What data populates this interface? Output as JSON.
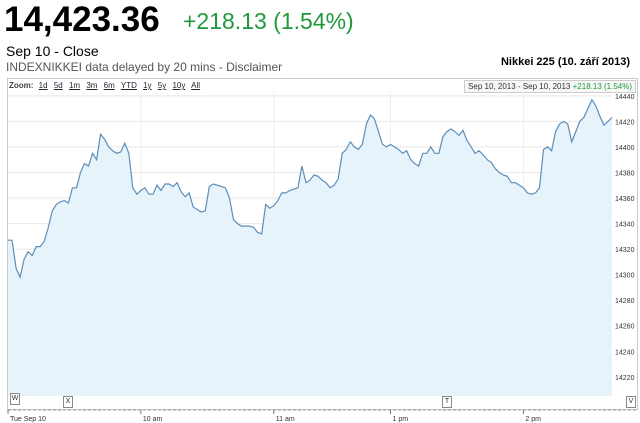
{
  "quote": {
    "price": "14,423.36",
    "change": "+218.13 (1.54%)",
    "close_label": "Sep 10 - Close",
    "source": "INDEXNIKKEI data delayed by 20 mins",
    "separator": " - ",
    "disclaimer": "Disclaimer"
  },
  "zoom": {
    "label": "Zoom:",
    "options": [
      "1d",
      "5d",
      "1m",
      "3m",
      "6m",
      "YTD",
      "1y",
      "5y",
      "10y",
      "All"
    ]
  },
  "range": {
    "text": "Sep 10, 2013 - Sep 10, 2013",
    "change": "+218.13 (1.54%)"
  },
  "colors": {
    "line": "#5e8db8",
    "fill": "#e6f3fb",
    "positive": "#1f9a3b"
  },
  "chart_data": {
    "type": "area",
    "title": "Nikkei 225 (10. září 2013)",
    "ylim": [
      14205,
      14443
    ],
    "yticks": [
      14220,
      14240,
      14260,
      14280,
      14300,
      14320,
      14340,
      14360,
      14380,
      14400,
      14420,
      14440
    ],
    "x_tick_labels": [
      "Tue Sep 10",
      "10 am",
      "11 am",
      "1 pm",
      "2 pm"
    ],
    "x": [
      0,
      1,
      2,
      3,
      4,
      5,
      6,
      7,
      8,
      9,
      10,
      11,
      12,
      13,
      14,
      15,
      16,
      17,
      18,
      19,
      20,
      21,
      22,
      23,
      24,
      25,
      26,
      27,
      28,
      29,
      30,
      31,
      32,
      33,
      34,
      35,
      36,
      37,
      38,
      39,
      40,
      41,
      42,
      43,
      44,
      45,
      46,
      47,
      48,
      49,
      50,
      51,
      52,
      53,
      54,
      55,
      56,
      57,
      58,
      59,
      60,
      61,
      62,
      63,
      64,
      65,
      66,
      67,
      68,
      69,
      70,
      71,
      72,
      73,
      74,
      75,
      76,
      77,
      78,
      79,
      80,
      81,
      82,
      83,
      84,
      85,
      86,
      87,
      88,
      89,
      90,
      91,
      92,
      93,
      94,
      95,
      96,
      97,
      98,
      99,
      100,
      101,
      102,
      103,
      104,
      105,
      106,
      107,
      108,
      109,
      110,
      111,
      112,
      113,
      114,
      115,
      116,
      117,
      118,
      119,
      120,
      121,
      122,
      123,
      124,
      125,
      126,
      127,
      128,
      129,
      130,
      131,
      132,
      133,
      134,
      135,
      136,
      137,
      138,
      139,
      140,
      141,
      142,
      143,
      144,
      145,
      146,
      147,
      148,
      149,
      150
    ],
    "values": [
      14327,
      14327,
      14305,
      14298,
      14312,
      14318,
      14315,
      14322,
      14322,
      14326,
      14337,
      14350,
      14355,
      14357,
      14358,
      14356,
      14368,
      14368,
      14380,
      14387,
      14385,
      14395,
      14390,
      14410,
      14406,
      14400,
      14397,
      14395,
      14396,
      14403,
      14395,
      14368,
      14363,
      14366,
      14368,
      14363,
      14363,
      14370,
      14366,
      14371,
      14371,
      14369,
      14372,
      14365,
      14361,
      14364,
      14353,
      14351,
      14349,
      14350,
      14369,
      14371,
      14370,
      14369,
      14368,
      14360,
      14343,
      14340,
      14338,
      14338,
      14338,
      14337,
      14333,
      14332,
      14355,
      14352,
      14354,
      14358,
      14364,
      14364,
      14366,
      14367,
      14368,
      14385,
      14372,
      14374,
      14378,
      14377,
      14374,
      14372,
      14368,
      14370,
      14375,
      14395,
      14398,
      14404,
      14400,
      14398,
      14402,
      14418,
      14425,
      14422,
      14412,
      14402,
      14400,
      14402,
      14400,
      14398,
      14395,
      14397,
      14390,
      14387,
      14385,
      14395,
      14395,
      14400,
      14395,
      14395,
      14408,
      14412,
      14414,
      14412,
      14409,
      14413,
      14405,
      14400,
      14395,
      14397,
      14394,
      14390,
      14388,
      14383,
      14380,
      14378,
      14377,
      14372,
      14372,
      14370,
      14368,
      14364,
      14363,
      14364,
      14368,
      14398,
      14400,
      14397,
      14412,
      14418,
      14420,
      14418,
      14404,
      14412,
      14420,
      14423,
      14430,
      14437,
      14432,
      14424,
      14417,
      14420,
      14423
    ],
    "x_tick_positions": [
      0,
      33,
      66,
      95,
      128
    ]
  }
}
